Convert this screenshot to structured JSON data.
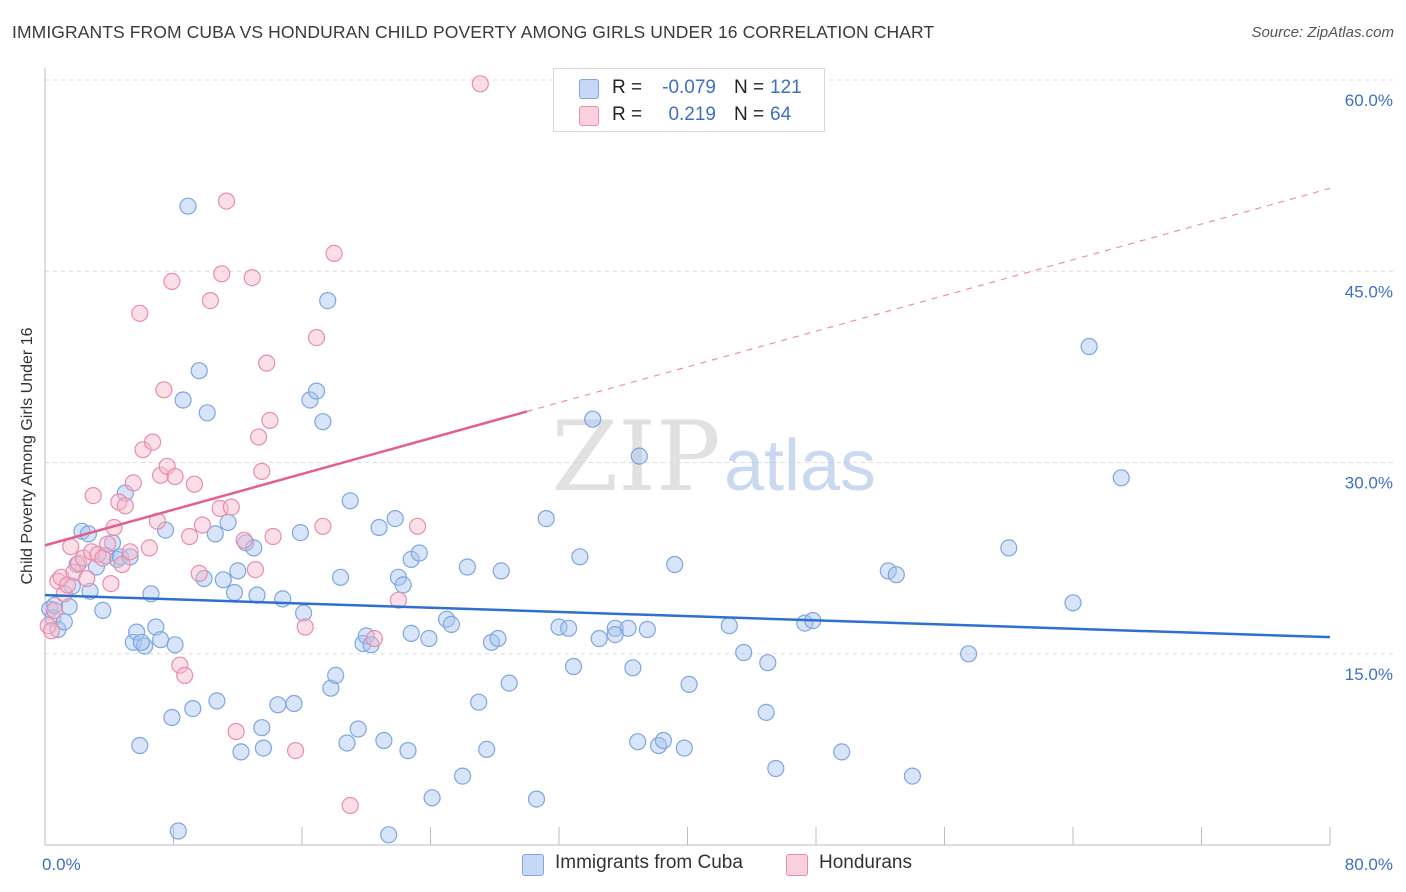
{
  "title": "IMMIGRANTS FROM CUBA VS HONDURAN CHILD POVERTY AMONG GIRLS UNDER 16 CORRELATION CHART",
  "source": "Source: ZipAtlas.com",
  "watermark": {
    "zip": "ZIP",
    "atlas": "atlas"
  },
  "legend_stats": [
    {
      "r_label": "R =",
      "r_value": "-0.079",
      "n_label": "N =",
      "n_value": "121"
    },
    {
      "r_label": "R =",
      "r_value": "0.219",
      "n_label": "N =",
      "n_value": "64"
    }
  ],
  "chart_data": {
    "type": "scatter",
    "ylabel": "Child Poverty Among Girls Under 16",
    "xlim": [
      0,
      80
    ],
    "ylim": [
      0,
      60
    ],
    "x_tick_labels": [
      "0.0%",
      "80.0%"
    ],
    "y_ticks": [
      15,
      30,
      45,
      60
    ],
    "y_tick_labels": [
      "15.0%",
      "30.0%",
      "45.0%",
      "60.0%"
    ],
    "grid": true,
    "legend_position": "bottom",
    "series": [
      {
        "name": "Immigrants from Cuba",
        "color": "#a9c4ee",
        "stroke": "#7ea6e0",
        "trend_color": "#2f6fce",
        "trend": {
          "x0": 0,
          "y0": 19.6,
          "x1": 80,
          "y1": 16.3
        },
        "points": [
          [
            0.3,
            18.5
          ],
          [
            0.5,
            17.8
          ],
          [
            0.6,
            18.8
          ],
          [
            0.8,
            16.9
          ],
          [
            1.2,
            17.5
          ],
          [
            1.5,
            18.7
          ],
          [
            1.7,
            20.3
          ],
          [
            2.0,
            22.0
          ],
          [
            2.3,
            24.6
          ],
          [
            2.7,
            24.4
          ],
          [
            2.8,
            19.9
          ],
          [
            3.2,
            21.8
          ],
          [
            3.6,
            18.4
          ],
          [
            3.8,
            22.7
          ],
          [
            4.2,
            23.7
          ],
          [
            4.5,
            22.4
          ],
          [
            4.7,
            22.6
          ],
          [
            5.0,
            27.6
          ],
          [
            5.3,
            22.6
          ],
          [
            5.5,
            15.9
          ],
          [
            5.7,
            16.7
          ],
          [
            5.9,
            7.8
          ],
          [
            6.2,
            15.6
          ],
          [
            6.6,
            19.7
          ],
          [
            6.9,
            17.1
          ],
          [
            7.2,
            16.1
          ],
          [
            7.5,
            24.7
          ],
          [
            7.9,
            10.0
          ],
          [
            8.1,
            15.7
          ],
          [
            8.3,
            1.1
          ],
          [
            8.6,
            34.9
          ],
          [
            8.9,
            50.1
          ],
          [
            9.2,
            10.7
          ],
          [
            9.6,
            37.2
          ],
          [
            9.9,
            20.9
          ],
          [
            10.1,
            33.9
          ],
          [
            10.6,
            24.4
          ],
          [
            10.7,
            11.3
          ],
          [
            11.1,
            20.8
          ],
          [
            11.4,
            25.3
          ],
          [
            11.8,
            19.8
          ],
          [
            12.0,
            21.5
          ],
          [
            12.2,
            7.3
          ],
          [
            12.5,
            23.7
          ],
          [
            13.0,
            23.3
          ],
          [
            13.2,
            19.6
          ],
          [
            13.5,
            9.2
          ],
          [
            13.6,
            7.6
          ],
          [
            14.5,
            11.0
          ],
          [
            14.8,
            19.3
          ],
          [
            15.5,
            11.1
          ],
          [
            15.9,
            24.5
          ],
          [
            16.1,
            18.2
          ],
          [
            16.5,
            34.9
          ],
          [
            16.9,
            35.6
          ],
          [
            17.3,
            33.2
          ],
          [
            17.6,
            42.7
          ],
          [
            17.8,
            12.3
          ],
          [
            18.1,
            13.3
          ],
          [
            18.4,
            21.0
          ],
          [
            18.8,
            8.0
          ],
          [
            19.0,
            27.0
          ],
          [
            19.5,
            9.1
          ],
          [
            19.8,
            15.8
          ],
          [
            20.0,
            16.4
          ],
          [
            20.3,
            15.7
          ],
          [
            20.8,
            24.9
          ],
          [
            21.1,
            8.2
          ],
          [
            21.4,
            0.8
          ],
          [
            21.8,
            25.6
          ],
          [
            22.0,
            21.0
          ],
          [
            22.3,
            20.4
          ],
          [
            22.6,
            7.4
          ],
          [
            22.8,
            22.4
          ],
          [
            23.3,
            22.9
          ],
          [
            23.9,
            16.2
          ],
          [
            24.1,
            3.7
          ],
          [
            25.0,
            17.7
          ],
          [
            25.3,
            17.3
          ],
          [
            26.0,
            5.4
          ],
          [
            26.3,
            21.8
          ],
          [
            27.0,
            11.2
          ],
          [
            27.5,
            7.5
          ],
          [
            27.8,
            15.9
          ],
          [
            28.2,
            16.2
          ],
          [
            28.4,
            21.5
          ],
          [
            28.9,
            12.7
          ],
          [
            30.6,
            3.6
          ],
          [
            31.2,
            25.6
          ],
          [
            32.0,
            17.1
          ],
          [
            32.6,
            17.0
          ],
          [
            32.9,
            14.0
          ],
          [
            33.3,
            22.6
          ],
          [
            34.1,
            33.4
          ],
          [
            34.5,
            16.2
          ],
          [
            35.5,
            17.0
          ],
          [
            36.3,
            17.0
          ],
          [
            36.6,
            13.9
          ],
          [
            36.9,
            8.1
          ],
          [
            37.0,
            30.5
          ],
          [
            37.5,
            16.9
          ],
          [
            38.2,
            7.8
          ],
          [
            38.5,
            8.2
          ],
          [
            39.2,
            22.0
          ],
          [
            39.8,
            7.6
          ],
          [
            40.1,
            12.6
          ],
          [
            42.6,
            17.2
          ],
          [
            43.5,
            15.1
          ],
          [
            44.9,
            10.4
          ],
          [
            45.0,
            14.3
          ],
          [
            45.5,
            6.0
          ],
          [
            47.3,
            17.4
          ],
          [
            47.8,
            17.6
          ],
          [
            49.6,
            7.3
          ],
          [
            52.5,
            21.5
          ],
          [
            53.0,
            21.2
          ],
          [
            54.0,
            5.4
          ],
          [
            57.5,
            15.0
          ],
          [
            60.0,
            23.3
          ],
          [
            64.0,
            19.0
          ],
          [
            65.0,
            39.1
          ],
          [
            67.0,
            28.8
          ],
          [
            35.5,
            16.5
          ],
          [
            22.8,
            16.6
          ],
          [
            6.0,
            15.9
          ]
        ]
      },
      {
        "name": "Hondurans",
        "color": "#f5b8cb",
        "stroke": "#ea8cab",
        "trend_color": "#e3608c",
        "trend": {
          "x0": 0,
          "y0": 23.5,
          "x1": 30,
          "y1": 34.0
        },
        "trend_dashed_to": {
          "x": 80,
          "y": 51.5
        },
        "points": [
          [
            0.2,
            17.2
          ],
          [
            0.4,
            16.8
          ],
          [
            0.6,
            18.4
          ],
          [
            0.8,
            20.7
          ],
          [
            1.0,
            21.0
          ],
          [
            1.2,
            19.7
          ],
          [
            1.4,
            20.4
          ],
          [
            1.6,
            23.4
          ],
          [
            1.8,
            21.4
          ],
          [
            2.1,
            22.1
          ],
          [
            2.4,
            22.5
          ],
          [
            2.6,
            20.9
          ],
          [
            2.9,
            23.0
          ],
          [
            3.0,
            27.4
          ],
          [
            3.3,
            22.8
          ],
          [
            3.6,
            22.5
          ],
          [
            3.9,
            23.6
          ],
          [
            4.1,
            20.5
          ],
          [
            4.3,
            24.9
          ],
          [
            4.6,
            26.9
          ],
          [
            4.8,
            22.0
          ],
          [
            5.0,
            26.6
          ],
          [
            5.3,
            23.0
          ],
          [
            5.5,
            28.4
          ],
          [
            5.9,
            41.7
          ],
          [
            6.1,
            31.0
          ],
          [
            6.5,
            23.3
          ],
          [
            6.7,
            31.6
          ],
          [
            7.0,
            25.4
          ],
          [
            7.2,
            29.0
          ],
          [
            7.4,
            35.7
          ],
          [
            7.6,
            29.7
          ],
          [
            7.9,
            44.2
          ],
          [
            8.1,
            28.9
          ],
          [
            8.4,
            14.1
          ],
          [
            8.7,
            13.3
          ],
          [
            9.0,
            24.2
          ],
          [
            9.3,
            28.3
          ],
          [
            9.6,
            21.3
          ],
          [
            9.8,
            25.1
          ],
          [
            10.3,
            42.7
          ],
          [
            10.9,
            26.4
          ],
          [
            11.0,
            44.8
          ],
          [
            11.3,
            50.5
          ],
          [
            11.6,
            26.5
          ],
          [
            11.9,
            8.9
          ],
          [
            12.4,
            23.9
          ],
          [
            12.9,
            44.5
          ],
          [
            13.1,
            21.6
          ],
          [
            13.3,
            32.0
          ],
          [
            13.5,
            29.3
          ],
          [
            13.8,
            37.8
          ],
          [
            14.0,
            33.3
          ],
          [
            14.2,
            24.2
          ],
          [
            15.6,
            7.4
          ],
          [
            16.2,
            17.1
          ],
          [
            16.9,
            39.8
          ],
          [
            17.3,
            25.0
          ],
          [
            18.0,
            46.4
          ],
          [
            19.0,
            3.1
          ],
          [
            20.5,
            16.2
          ],
          [
            22.0,
            19.2
          ],
          [
            23.2,
            25.0
          ],
          [
            27.1,
            59.7
          ]
        ]
      }
    ]
  }
}
